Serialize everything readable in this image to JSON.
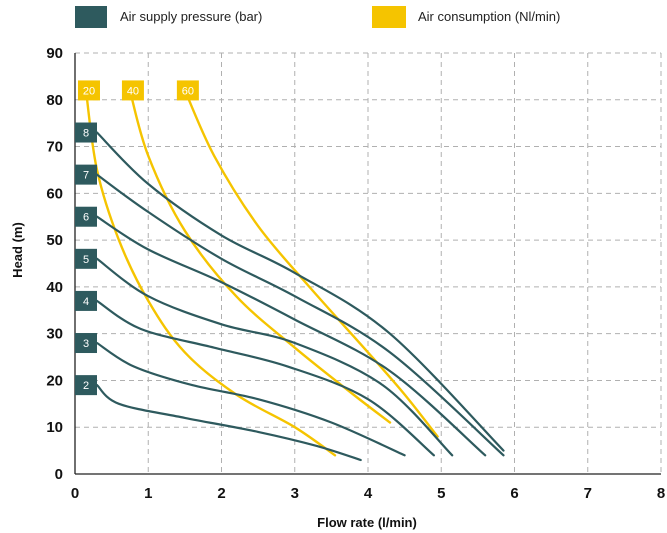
{
  "chart_data": {
    "type": "line",
    "xlabel": "Flow rate (l/min)",
    "ylabel": "Head (m)",
    "xlim": [
      0,
      8
    ],
    "ylim": [
      0,
      90
    ],
    "x_ticks": [
      "0",
      "1",
      "2",
      "3",
      "4",
      "5",
      "6",
      "7",
      "8"
    ],
    "y_ticks": [
      "0",
      "10",
      "20",
      "30",
      "40",
      "50",
      "60",
      "70",
      "80",
      "90"
    ],
    "grid": true,
    "legend_placement": "top",
    "legend": [
      {
        "label": "Air supply pressure (bar)",
        "color": "#2e5a5e"
      },
      {
        "label": "Air consumption (Nl/min)",
        "color": "#f5c400"
      }
    ],
    "pressure_series": [
      {
        "label": "2",
        "points": [
          [
            0.3,
            19
          ],
          [
            0.6,
            15
          ],
          [
            1.5,
            12
          ],
          [
            2.5,
            9
          ],
          [
            3.3,
            6
          ],
          [
            3.9,
            3
          ]
        ]
      },
      {
        "label": "3",
        "points": [
          [
            0.3,
            28
          ],
          [
            0.8,
            23
          ],
          [
            1.6,
            19
          ],
          [
            2.5,
            16
          ],
          [
            3.5,
            11
          ],
          [
            4.5,
            4
          ]
        ]
      },
      {
        "label": "4",
        "points": [
          [
            0.3,
            37
          ],
          [
            0.9,
            31
          ],
          [
            1.9,
            27
          ],
          [
            2.9,
            23
          ],
          [
            4.0,
            16
          ],
          [
            4.9,
            4
          ]
        ]
      },
      {
        "label": "5",
        "points": [
          [
            0.3,
            46
          ],
          [
            1.0,
            38
          ],
          [
            2.0,
            32
          ],
          [
            3.0,
            28
          ],
          [
            4.2,
            19
          ],
          [
            5.15,
            4
          ]
        ]
      },
      {
        "label": "6",
        "points": [
          [
            0.3,
            55
          ],
          [
            1.0,
            48
          ],
          [
            2.0,
            41
          ],
          [
            3.0,
            33
          ],
          [
            4.3,
            22
          ],
          [
            5.6,
            4
          ]
        ]
      },
      {
        "label": "7",
        "points": [
          [
            0.3,
            64
          ],
          [
            1.0,
            56
          ],
          [
            2.0,
            46
          ],
          [
            3.0,
            38
          ],
          [
            4.3,
            26
          ],
          [
            5.85,
            4
          ]
        ]
      },
      {
        "label": "8",
        "points": [
          [
            0.3,
            73
          ],
          [
            1.0,
            62
          ],
          [
            2.0,
            51
          ],
          [
            3.0,
            43
          ],
          [
            4.3,
            30
          ],
          [
            5.85,
            5
          ]
        ]
      }
    ],
    "consumption_series": [
      {
        "label": "20",
        "points": [
          [
            0.15,
            82
          ],
          [
            0.3,
            65
          ],
          [
            0.6,
            50
          ],
          [
            1.0,
            37
          ],
          [
            1.5,
            26
          ],
          [
            2.2,
            17
          ],
          [
            3.0,
            10
          ],
          [
            3.55,
            4
          ]
        ]
      },
      {
        "label": "40",
        "points": [
          [
            0.75,
            82
          ],
          [
            1.0,
            68
          ],
          [
            1.5,
            52
          ],
          [
            2.2,
            38
          ],
          [
            3.0,
            27
          ],
          [
            3.8,
            17
          ],
          [
            4.3,
            11
          ]
        ]
      },
      {
        "label": "60",
        "points": [
          [
            1.5,
            82
          ],
          [
            1.9,
            68
          ],
          [
            2.5,
            53
          ],
          [
            3.2,
            40
          ],
          [
            4.0,
            26
          ],
          [
            4.5,
            17
          ],
          [
            4.95,
            8
          ]
        ]
      }
    ]
  }
}
